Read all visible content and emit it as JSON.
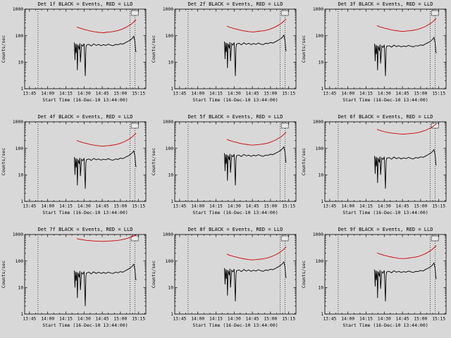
{
  "page": {
    "background": "#d8d8d8"
  },
  "colors": {
    "events": "#000000",
    "lld": "#cc0000",
    "axis": "#000000",
    "inset_fill": "#e9e9e9"
  },
  "chart_data": {
    "type": "line",
    "log_y": true,
    "xlabel": "Start Time (16-Dec-10 13:44:00)",
    "ylabel": "Counts/sec",
    "xlim": [
      821,
      921
    ],
    "ylim": [
      1,
      1000
    ],
    "x_unit": "minutes-since-midnight",
    "legend": {
      "black": "Events",
      "red": "LLD"
    },
    "xticks": [
      {
        "t": 825,
        "label": "13:45"
      },
      {
        "t": 840,
        "label": "14:00"
      },
      {
        "t": 855,
        "label": "14:15"
      },
      {
        "t": 870,
        "label": "14:30"
      },
      {
        "t": 885,
        "label": "14:45"
      },
      {
        "t": 900,
        "label": "15:00"
      },
      {
        "t": 915,
        "label": "15:15"
      }
    ],
    "yticks": [
      {
        "v": 1,
        "label": "1"
      },
      {
        "v": 10,
        "label": "10"
      },
      {
        "v": 100,
        "label": "100"
      },
      {
        "v": 1000,
        "label": "1000"
      }
    ],
    "vlines": [
      832,
      908,
      912
    ],
    "x_black": [
      862,
      862.5,
      863,
      863.5,
      864,
      864.5,
      865,
      866,
      866.5,
      867,
      868,
      869,
      870,
      871,
      871.5,
      872,
      874,
      876,
      878,
      880,
      882,
      884,
      886,
      888,
      890,
      892,
      894,
      896,
      898,
      900,
      902,
      904,
      906,
      908,
      909,
      910,
      911,
      912,
      912.5,
      913
    ],
    "x_red": [
      864,
      866,
      868,
      870,
      872,
      874,
      876,
      878,
      880,
      882,
      884,
      886,
      888,
      890,
      892,
      894,
      896,
      898,
      900,
      902,
      904,
      906,
      908,
      909,
      910,
      911,
      912,
      913
    ],
    "charts": [
      {
        "id": "det-1f",
        "title": "Det 1f BLACK = Events, RED = LLD",
        "black_y": [
          55,
          12,
          50,
          22,
          48,
          5,
          45,
          30,
          52,
          10,
          46,
          40,
          50,
          3,
          34,
          44,
          47,
          41,
          49,
          43,
          47,
          42,
          46,
          43,
          48,
          44,
          42,
          47,
          45,
          50,
          48,
          54,
          60,
          68,
          74,
          82,
          95,
          60,
          28,
          24
        ],
        "red_y": [
          215,
          195,
          185,
          172,
          165,
          155,
          148,
          142,
          138,
          133,
          131,
          129,
          133,
          136,
          139,
          143,
          149,
          156,
          168,
          182,
          200,
          225,
          255,
          275,
          300,
          330,
          365,
          400
        ]
      },
      {
        "id": "det-2f",
        "title": "Det 2f BLACK = Events, RED = LLD",
        "black_y": [
          60,
          13,
          55,
          24,
          53,
          6,
          50,
          33,
          57,
          11,
          51,
          44,
          55,
          3,
          37,
          48,
          52,
          45,
          54,
          47,
          52,
          46,
          51,
          47,
          53,
          48,
          46,
          52,
          50,
          55,
          53,
          59,
          66,
          75,
          81,
          90,
          105,
          66,
          31,
          26
        ],
        "red_y": [
          230,
          209,
          198,
          184,
          177,
          166,
          158,
          152,
          148,
          142,
          140,
          138,
          142,
          146,
          149,
          153,
          159,
          167,
          180,
          195,
          214,
          241,
          273,
          294,
          321,
          353,
          391,
          428
        ]
      },
      {
        "id": "det-3f",
        "title": "Det 3f BLACK = Events, RED = LLD",
        "black_y": [
          50,
          11,
          45,
          20,
          43,
          5,
          41,
          27,
          47,
          9,
          41,
          36,
          45,
          3,
          31,
          40,
          42,
          37,
          44,
          39,
          42,
          38,
          41,
          39,
          43,
          40,
          38,
          42,
          41,
          45,
          43,
          49,
          54,
          61,
          67,
          74,
          86,
          54,
          25,
          22
        ],
        "red_y": [
          241,
          218,
          207,
          193,
          185,
          174,
          166,
          159,
          155,
          149,
          147,
          144,
          149,
          152,
          156,
          160,
          167,
          175,
          188,
          204,
          224,
          252,
          286,
          308,
          336,
          370,
          409,
          448
        ]
      },
      {
        "id": "det-4f",
        "title": "Det 4f BLACK = Events, RED = LLD",
        "black_y": [
          47,
          10,
          43,
          19,
          41,
          4,
          38,
          26,
          44,
          9,
          39,
          34,
          43,
          3,
          29,
          37,
          40,
          35,
          42,
          37,
          40,
          36,
          39,
          37,
          41,
          37,
          36,
          40,
          38,
          43,
          41,
          46,
          51,
          58,
          63,
          70,
          81,
          51,
          24,
          20
        ],
        "red_y": [
          200,
          181,
          172,
          160,
          153,
          144,
          138,
          132,
          128,
          124,
          122,
          120,
          124,
          126,
          129,
          133,
          139,
          145,
          156,
          169,
          186,
          209,
          237,
          256,
          279,
          307,
          339,
          372
        ]
      },
      {
        "id": "det-5f",
        "title": "Det 5f BLACK = Events, RED = LLD",
        "black_y": [
          66,
          14,
          60,
          26,
          58,
          6,
          54,
          36,
          62,
          12,
          55,
          48,
          60,
          4,
          41,
          53,
          56,
          49,
          59,
          52,
          56,
          50,
          55,
          52,
          58,
          53,
          50,
          56,
          54,
          60,
          58,
          65,
          72,
          82,
          89,
          98,
          114,
          72,
          34,
          29
        ],
        "red_y": [
          219,
          199,
          189,
          175,
          168,
          158,
          151,
          145,
          141,
          136,
          134,
          132,
          136,
          139,
          142,
          146,
          152,
          159,
          171,
          186,
          204,
          230,
          260,
          281,
          306,
          337,
          372,
          408
        ]
      },
      {
        "id": "det-6f",
        "title": "Det 6f BLACK = Events, RED = LLD",
        "black_y": [
          52,
          11,
          48,
          21,
          46,
          5,
          43,
          29,
          49,
          10,
          44,
          38,
          48,
          3,
          32,
          42,
          45,
          39,
          47,
          41,
          45,
          40,
          44,
          41,
          46,
          42,
          40,
          45,
          43,
          48,
          46,
          51,
          57,
          65,
          70,
          78,
          90,
          57,
          27,
          23
        ],
        "red_y": [
          520,
          480,
          450,
          425,
          405,
          390,
          378,
          368,
          360,
          352,
          347,
          344,
          350,
          356,
          362,
          370,
          381,
          396,
          418,
          445,
          480,
          525,
          580,
          615,
          655,
          705,
          770,
          845
        ]
      },
      {
        "id": "det-7f",
        "title": "Det 7f BLACK = Events, RED = LLD",
        "black_y": [
          44,
          10,
          40,
          18,
          38,
          4,
          36,
          24,
          42,
          8,
          37,
          32,
          40,
          2,
          27,
          35,
          38,
          33,
          39,
          34,
          38,
          34,
          37,
          34,
          38,
          35,
          34,
          38,
          36,
          40,
          38,
          43,
          48,
          54,
          59,
          66,
          76,
          48,
          22,
          19
        ],
        "red_y": [
          700,
          665,
          640,
          620,
          603,
          590,
          579,
          570,
          563,
          557,
          553,
          550,
          556,
          562,
          569,
          577,
          588,
          602,
          622,
          648,
          682,
          724,
          776,
          806,
          840,
          878,
          920,
          955
        ]
      },
      {
        "id": "det-8f",
        "title": "Det 8f BLACK = Events, RED = LLD",
        "black_y": [
          54,
          13,
          49,
          21,
          47,
          5,
          44,
          29,
          51,
          10,
          45,
          39,
          49,
          3,
          33,
          43,
          46,
          40,
          48,
          42,
          46,
          41,
          45,
          42,
          47,
          43,
          41,
          46,
          44,
          49,
          47,
          53,
          59,
          67,
          73,
          81,
          93,
          59,
          27,
          23
        ],
        "red_y": [
          183,
          166,
          157,
          146,
          140,
          132,
          126,
          121,
          117,
          113,
          111,
          110,
          113,
          116,
          118,
          122,
          127,
          133,
          143,
          155,
          170,
          191,
          217,
          234,
          255,
          281,
          310,
          340
        ]
      },
      {
        "id": "det-9f",
        "title": "Det 9f BLACK = Events, RED = LLD",
        "black_y": [
          48,
          11,
          44,
          19,
          42,
          4,
          40,
          26,
          46,
          9,
          40,
          35,
          44,
          3,
          30,
          39,
          41,
          36,
          43,
          38,
          41,
          37,
          40,
          38,
          42,
          39,
          37,
          41,
          40,
          44,
          42,
          48,
          53,
          60,
          65,
          72,
          84,
          53,
          25,
          21
        ],
        "red_y": [
          204,
          185,
          176,
          163,
          157,
          147,
          141,
          135,
          131,
          126,
          124,
          123,
          126,
          129,
          132,
          136,
          142,
          148,
          160,
          173,
          190,
          214,
          243,
          261,
          285,
          314,
          347,
          380
        ]
      }
    ]
  }
}
